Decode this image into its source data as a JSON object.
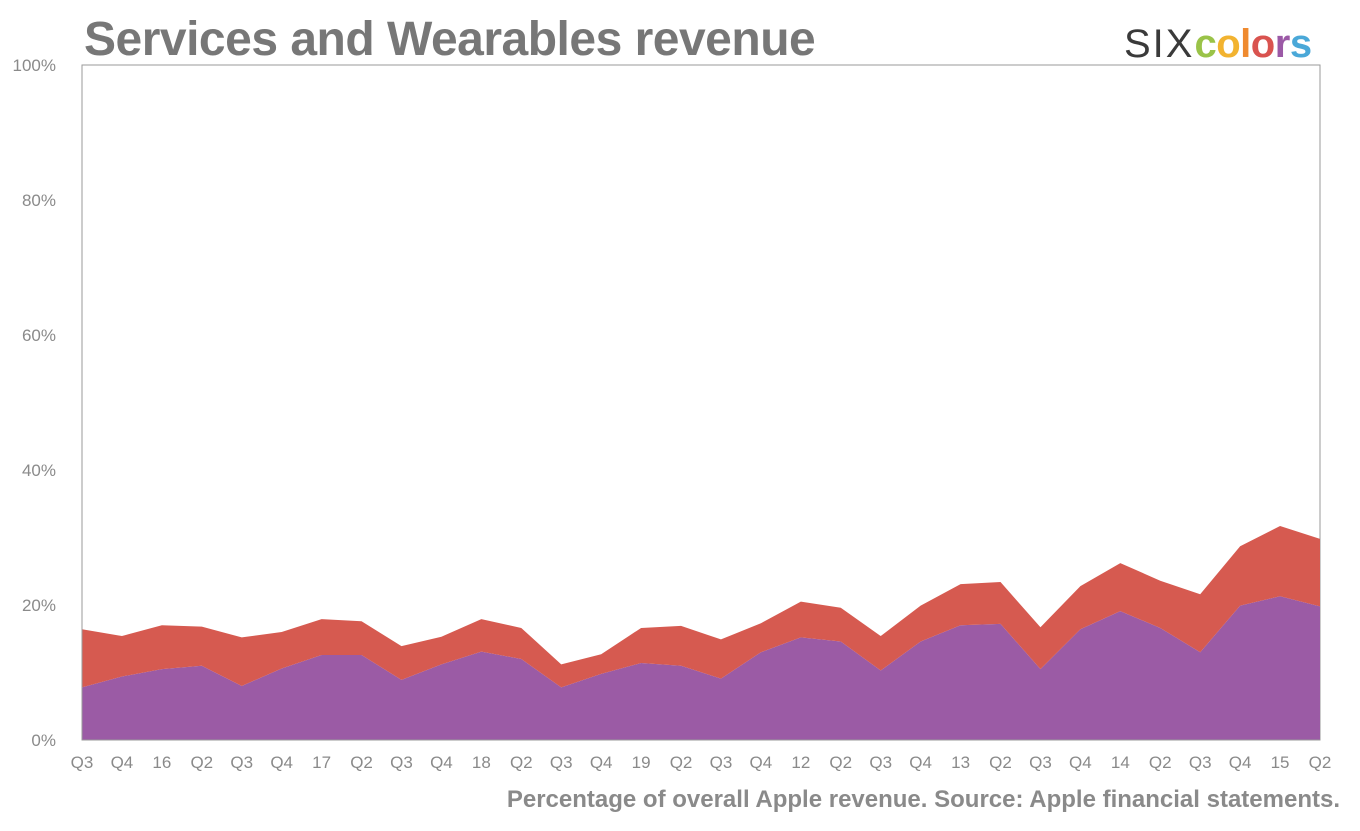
{
  "header": {
    "title": "Services and Wearables revenue",
    "logo": {
      "prefix": "SIX",
      "letters": [
        {
          "char": "c",
          "color": "#9ac348"
        },
        {
          "char": "o",
          "color": "#f2b330"
        },
        {
          "char": "l",
          "color": "#ef8a2f"
        },
        {
          "char": "o",
          "color": "#d9534f"
        },
        {
          "char": "r",
          "color": "#9b59a6"
        },
        {
          "char": "s",
          "color": "#4aa8d8"
        }
      ]
    }
  },
  "caption": "Percentage of overall Apple revenue. Source: Apple financial statements.",
  "chart_data": {
    "type": "area",
    "stacked": true,
    "title": "Services and Wearables revenue",
    "ylim": [
      0,
      100
    ],
    "y_ticks": [
      "0%",
      "20%",
      "40%",
      "60%",
      "80%",
      "100%"
    ],
    "categories": [
      "Q3",
      "Q4",
      "16",
      "Q2",
      "Q3",
      "Q4",
      "17",
      "Q2",
      "Q3",
      "Q4",
      "18",
      "Q2",
      "Q3",
      "Q4",
      "19",
      "Q2",
      "Q3",
      "Q4",
      "12",
      "Q2",
      "Q3",
      "Q4",
      "13",
      "Q2",
      "Q3",
      "Q4",
      "14",
      "Q2",
      "Q3",
      "Q4",
      "15",
      "Q2"
    ],
    "series": [
      {
        "color": "#9b5ba5",
        "values": [
          7.8,
          9.4,
          10.5,
          11.0,
          8.0,
          10.6,
          12.6,
          12.6,
          8.9,
          11.2,
          13.1,
          12.0,
          7.8,
          9.8,
          11.4,
          11.0,
          9.1,
          13.0,
          15.2,
          14.6,
          10.3,
          14.6,
          17.0,
          17.2,
          10.5,
          16.4,
          19.1,
          16.6,
          13.0,
          19.9,
          21.3,
          19.8
        ]
      },
      {
        "color": "#d65a50",
        "values": [
          8.6,
          6.0,
          6.5,
          5.8,
          7.2,
          5.4,
          5.3,
          5.0,
          5.0,
          4.1,
          4.8,
          4.6,
          3.4,
          2.9,
          5.2,
          5.9,
          5.8,
          4.3,
          5.3,
          5.0,
          5.1,
          5.3,
          6.1,
          6.2,
          6.2,
          6.4,
          7.1,
          7.0,
          8.6,
          8.8,
          10.4,
          10.0
        ]
      }
    ],
    "grid": false,
    "legend": "none"
  }
}
